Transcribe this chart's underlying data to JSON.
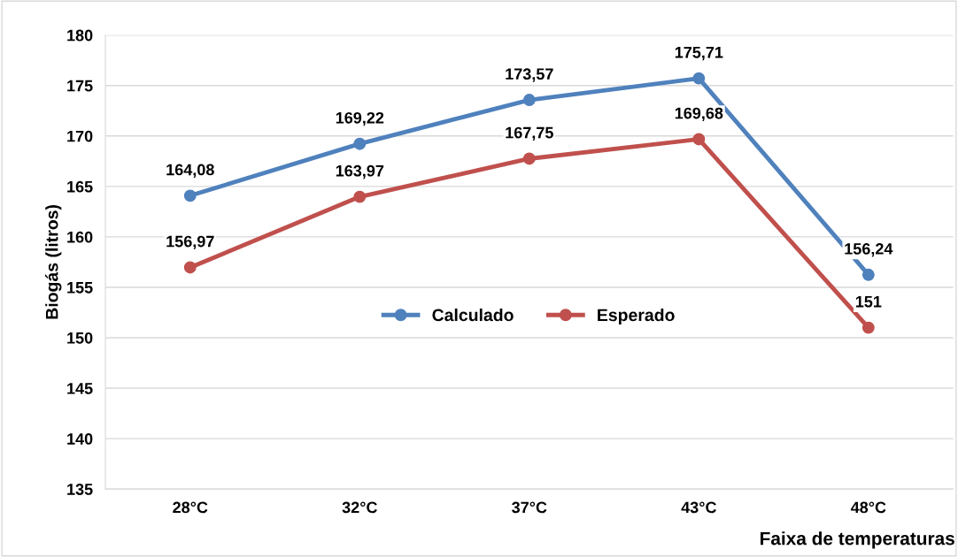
{
  "chart_data": {
    "type": "line",
    "ylabel": "Biogás (litros)",
    "xlabel": "Faixa de temperaturas",
    "categories": [
      "28°C",
      "32°C",
      "37°C",
      "43°C",
      "48°C"
    ],
    "series": [
      {
        "name": "Calculado",
        "color": "#4f81bd",
        "values": [
          164.08,
          169.22,
          173.57,
          175.71,
          156.24
        ],
        "value_labels": [
          "164,08",
          "169,22",
          "173,57",
          "175,71",
          "156,24"
        ]
      },
      {
        "name": "Esperado",
        "color": "#c0504d",
        "values": [
          156.97,
          163.97,
          167.75,
          169.68,
          151
        ],
        "value_labels": [
          "156,97",
          "163,97",
          "167,75",
          "169,68",
          "151"
        ]
      }
    ],
    "ylim": [
      135,
      180
    ],
    "yticks": [
      135,
      140,
      145,
      150,
      155,
      160,
      165,
      170,
      175,
      180
    ],
    "grid": "y",
    "legend": "center",
    "marker": "circle",
    "line_style": "solid"
  }
}
